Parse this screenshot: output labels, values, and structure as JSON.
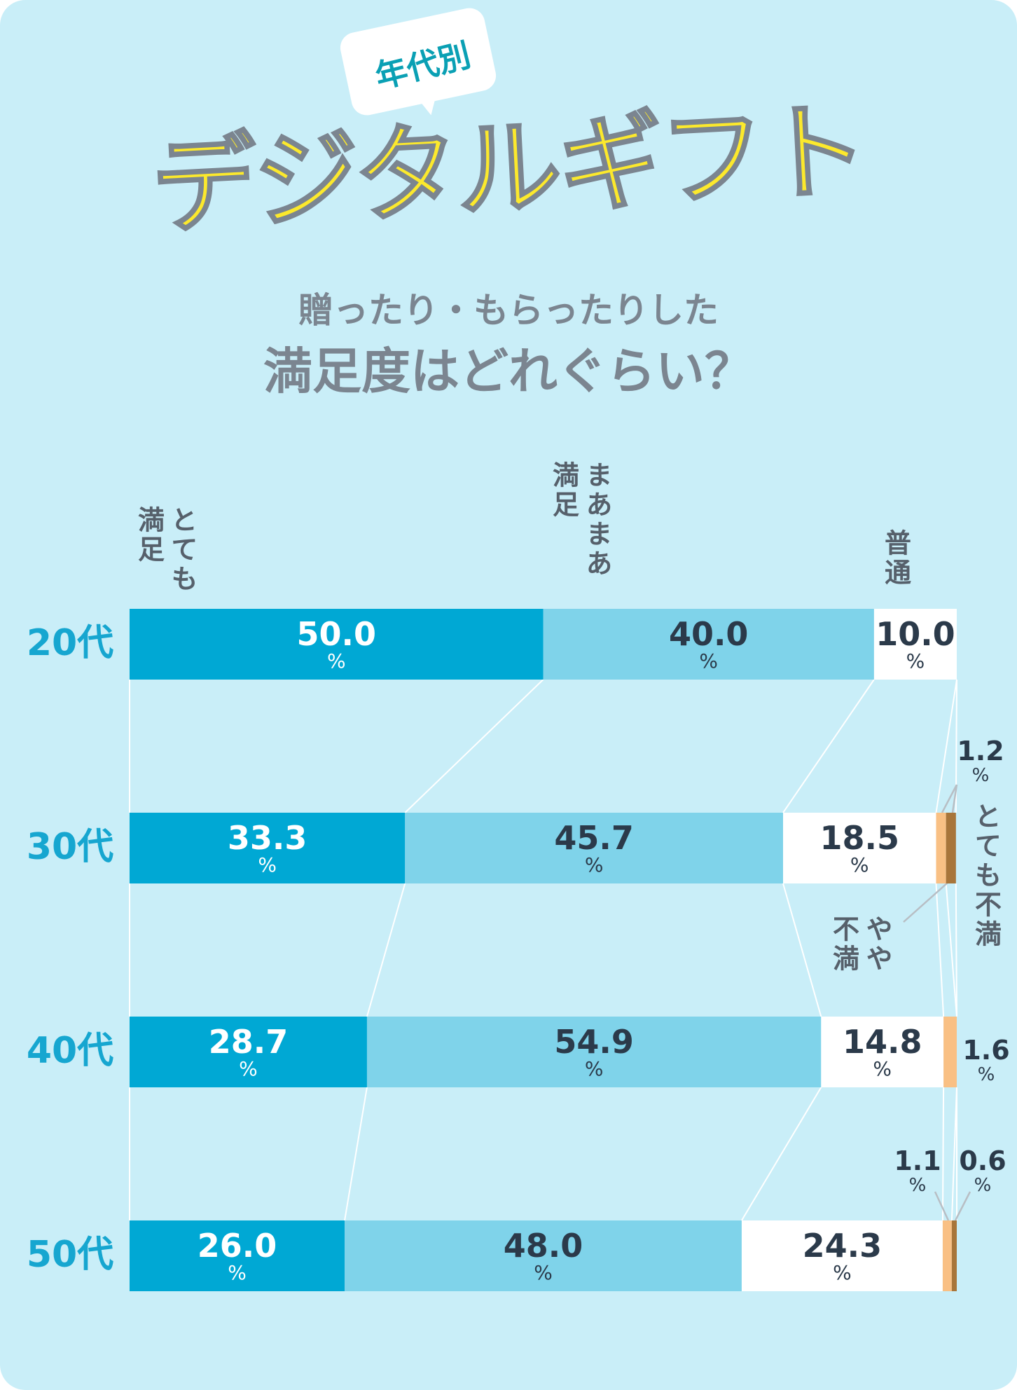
{
  "header": {
    "tag": "年代別",
    "title": "デジタルギフト",
    "subtitle_line1": "贈ったり・もらったりした",
    "subtitle_line2": "満足度はどれぐらい？"
  },
  "chart_data": {
    "type": "bar",
    "orientation": "horizontal",
    "stacked": true,
    "percent_unit": "%",
    "categories": [
      "20代",
      "30代",
      "40代",
      "50代"
    ],
    "series": [
      {
        "name": "とても満足",
        "label_lines": [
          "とても",
          "満足"
        ],
        "color": "#00a8d4",
        "values": [
          50.0,
          33.3,
          28.7,
          26.0
        ]
      },
      {
        "name": "まあまあ満足",
        "label_lines": [
          "まあまあ",
          "満足"
        ],
        "color": "#7fd3ea",
        "values": [
          40.0,
          45.7,
          54.9,
          48.0
        ]
      },
      {
        "name": "普通",
        "label_lines": [
          "普通"
        ],
        "color": "#ffffff",
        "values": [
          10.0,
          18.5,
          14.8,
          24.3
        ]
      },
      {
        "name": "やや不満",
        "label_lines": [
          "やや",
          "不満"
        ],
        "color": "#f9c084",
        "values": [
          0,
          1.2,
          1.6,
          1.1
        ]
      },
      {
        "name": "とても不満",
        "label_lines": [
          "とても不満"
        ],
        "color": "#a8753a",
        "values": [
          0,
          1.2,
          0,
          0.6
        ]
      }
    ],
    "value_labels": {
      "20代": [
        "50.0",
        "40.0",
        "10.0",
        "",
        ""
      ],
      "30代": [
        "33.3",
        "45.7",
        "18.5",
        "1.2",
        ""
      ],
      "40代": [
        "28.7",
        "54.9",
        "14.8",
        "1.6",
        ""
      ],
      "50代": [
        "26.0",
        "48.0",
        "24.3",
        "1.1",
        "0.6"
      ]
    },
    "xlim": [
      0,
      100
    ],
    "grid": false,
    "legend": "category labels above bars"
  }
}
